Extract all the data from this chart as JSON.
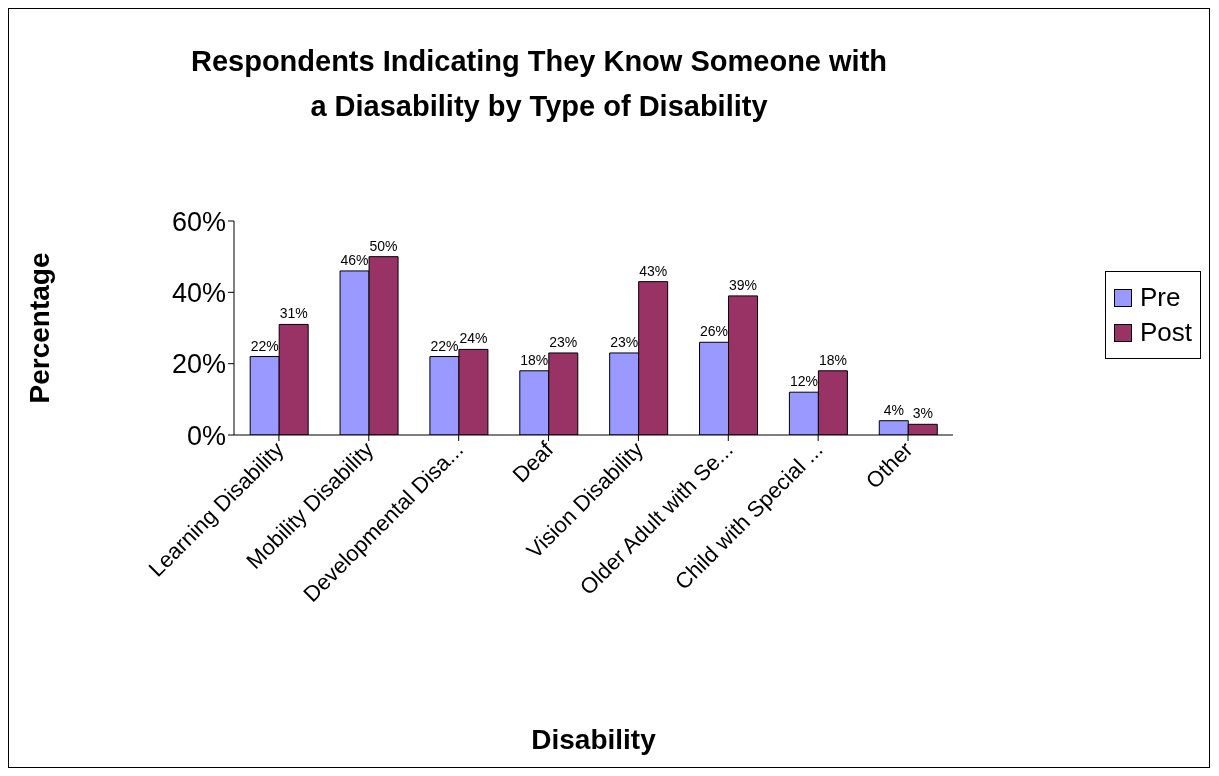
{
  "chart_data": {
    "type": "bar",
    "title": "Respondents Indicating They Know Someone with a Diasability by Type of Disability",
    "xlabel": "Disability",
    "ylabel": "Percentage",
    "categories": [
      "Learning Disability",
      "Mobility Disability",
      "Developmental Disa...",
      "Deaf",
      "Vision Disability",
      "Older Adult with Se...",
      "Child with Special ...",
      "Other"
    ],
    "series": [
      {
        "name": "Pre",
        "color": "#9999ff",
        "values": [
          22,
          46,
          22,
          18,
          23,
          26,
          12,
          4
        ],
        "value_labels": [
          "22%",
          "46%",
          "22%",
          "18%",
          "23%",
          "26%",
          "12%",
          "4%"
        ]
      },
      {
        "name": "Post",
        "color": "#993366",
        "values": [
          31,
          50,
          24,
          23,
          43,
          39,
          18,
          3
        ],
        "value_labels": [
          "31%",
          "50%",
          "24%",
          "23%",
          "43%",
          "39%",
          "18%",
          "3%"
        ]
      }
    ],
    "ylim": [
      0,
      60
    ],
    "yticks": [
      {
        "value": 0,
        "label": "0%"
      },
      {
        "value": 20,
        "label": "20%"
      },
      {
        "value": 40,
        "label": "40%"
      },
      {
        "value": 60,
        "label": "60%"
      }
    ],
    "grid": false,
    "legend": "right"
  }
}
